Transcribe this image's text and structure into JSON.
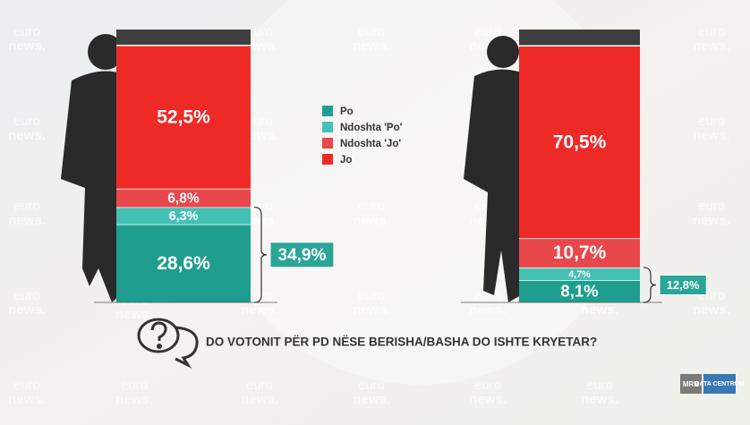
{
  "chart_data": {
    "type": "stacked-bar",
    "title": "DO VOTONIT PËR PD NËSE BERISHA/BASHA DO ISHTE KRYETAR?",
    "categories": [
      null,
      null
    ],
    "ylim": [
      0,
      100
    ],
    "series": [
      {
        "name": "Po",
        "color": "#1f9e8f",
        "values": [
          28.6,
          8.1
        ],
        "value_labels": [
          "28,6%",
          "8,1%"
        ]
      },
      {
        "name": "Ndoshta 'Po'",
        "color": "#45c0b5",
        "values": [
          6.3,
          4.7
        ],
        "value_labels": [
          "6,3%",
          "4,7%"
        ]
      },
      {
        "name": "Ndoshta 'Jo'",
        "color": "#e8474c",
        "values": [
          6.8,
          10.7
        ],
        "value_labels": [
          "6,8%",
          "10,7%"
        ]
      },
      {
        "name": "Jo",
        "color": "#ee2a27",
        "values": [
          52.5,
          70.5
        ],
        "value_labels": [
          "52,5%",
          "70,5%"
        ]
      }
    ],
    "totals": {
      "values": [
        34.9,
        12.8
      ],
      "value_labels": [
        "34,9%",
        "12,8%"
      ],
      "color": "#2aa596"
    },
    "watermark": [
      "euro",
      "news."
    ],
    "logos": [
      "MRB",
      "DATA CENTRUM"
    ]
  }
}
